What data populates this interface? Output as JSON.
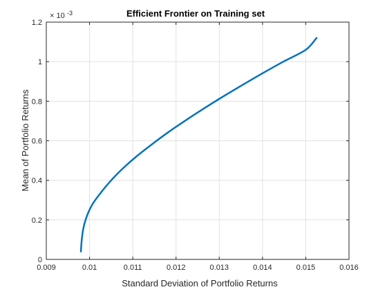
{
  "chart_data": {
    "type": "line",
    "title": "Efficient Frontier on Training set",
    "xlabel": "Standard Deviation of Portfolio Returns",
    "ylabel": "Mean of Portfolio Returns",
    "y_exponent_label": "× 10",
    "y_exponent": "-3",
    "xlim": [
      0.009,
      0.016
    ],
    "ylim": [
      0,
      0.0012
    ],
    "x_ticks": [
      0.009,
      0.01,
      0.011,
      0.012,
      0.013,
      0.014,
      0.015,
      0.016
    ],
    "x_tick_labels": [
      "0.009",
      "0.01",
      "0.011",
      "0.012",
      "0.013",
      "0.014",
      "0.015",
      "0.016"
    ],
    "y_ticks": [
      0,
      0.0002,
      0.0004,
      0.0006,
      0.0008,
      0.001,
      0.0012
    ],
    "y_tick_labels": [
      "0",
      "0.2",
      "0.4",
      "0.6",
      "0.8",
      "1",
      "1.2"
    ],
    "grid": true,
    "series_color": "#0072bd",
    "series": [
      {
        "x": [
          0.0098,
          0.00982,
          0.00986,
          0.00994,
          0.01007,
          0.01027,
          0.0105,
          0.01077,
          0.01108,
          0.01143,
          0.0118,
          0.0122,
          0.01262,
          0.01306,
          0.01352,
          0.01399,
          0.01448,
          0.015,
          0.01525
        ],
        "y": [
          4e-05,
          0.0001,
          0.00016,
          0.00022,
          0.00028,
          0.00034,
          0.0004,
          0.00046,
          0.00052,
          0.00058,
          0.00064,
          0.0007,
          0.00076,
          0.00082,
          0.00088,
          0.00094,
          0.001,
          0.00106,
          0.00112
        ]
      }
    ]
  }
}
